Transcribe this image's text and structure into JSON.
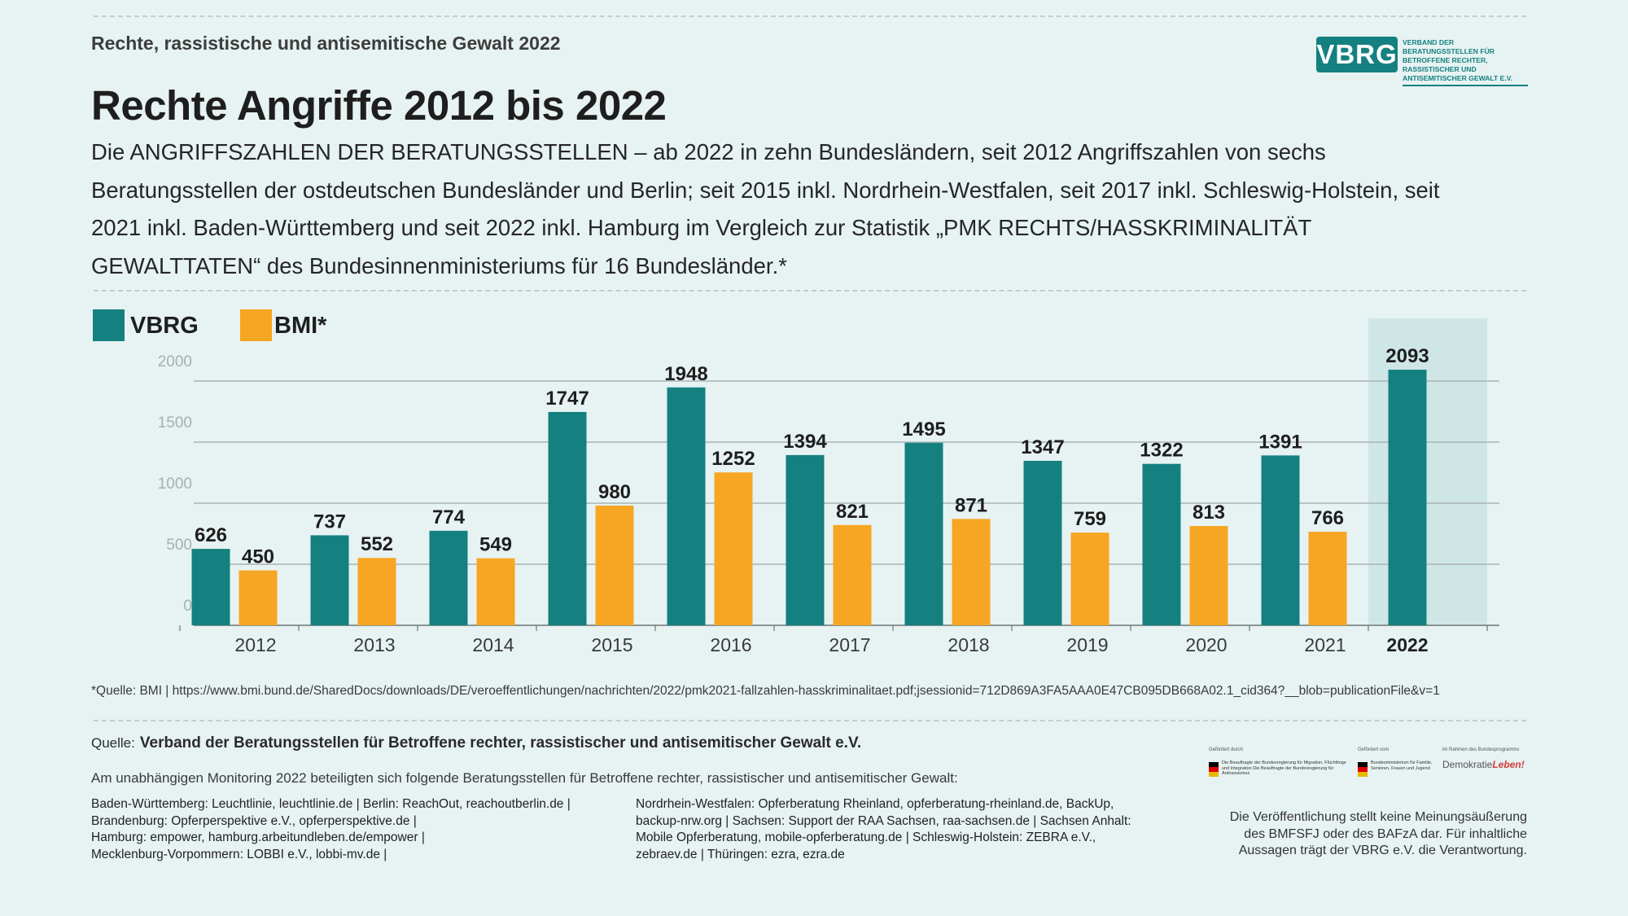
{
  "header": {
    "kicker": "Rechte, rassistische und antisemitische Gewalt 2022",
    "title": "Rechte Angriffe 2012 bis 2022",
    "subtitle": "Die ANGRIFFSZAHLEN DER BERATUNGSSTELLEN – ab 2022 in zehn Bundesländern, seit 2012 Angriffszahlen von sechs Beratungsstellen der ostdeutschen Bundesländer und Berlin; seit 2015 inkl. Nordrhein-Westfalen, seit 2017 inkl. Schleswig-Holstein, seit 2021 inkl. Baden-Württemberg und seit 2022 inkl. Hamburg im Vergleich zur Statistik „PMK RECHTS/HASSKRIMINALITÄT GEWALTTATEN“ des Bundesinnenministeriums für 16 Bundesländer.*"
  },
  "logo": {
    "mark": "VBRG",
    "text": "Verband der Beratungsstellen für Betroffene rechter, rassistischer und antisemitischer Gewalt e.V."
  },
  "colors": {
    "vbrg": "#148080",
    "bmi": "#f7a623",
    "highlight": "#cfe6e7",
    "grid": "#a9b4b4",
    "tick": "#b7bfbf"
  },
  "chart_data": {
    "type": "bar",
    "categories": [
      "2012",
      "2013",
      "2014",
      "2015",
      "2016",
      "2017",
      "2018",
      "2019",
      "2020",
      "2021",
      "2022"
    ],
    "series": [
      {
        "name": "VBRG",
        "values": [
          626,
          737,
          774,
          1747,
          1948,
          1394,
          1495,
          1347,
          1322,
          1391,
          2093
        ]
      },
      {
        "name": "BMI*",
        "values": [
          450,
          552,
          549,
          980,
          1252,
          821,
          871,
          759,
          813,
          766,
          null
        ]
      }
    ],
    "yticks": [
      "0",
      "500",
      "1000",
      "1500",
      "2000"
    ],
    "ylim": [
      0,
      2100
    ],
    "highlight_category": "2022",
    "grid": true,
    "legend": "top-left"
  },
  "footnote": "*Quelle: BMI | https://www.bmi.bund.de/SharedDocs/downloads/DE/veroeffentlichungen/nachrichten/2022/pmk2021-fallzahlen-hasskriminalitaet.pdf;jsessionid=712D869A3FA5AAA0E47CB095DB668A02.1_cid364?__blob=publicationFile&v=1",
  "source": {
    "label": "Quelle:",
    "text": "Verband der Beratungsstellen für Betroffene rechter, rassistischer und antisemitischer Gewalt e.V."
  },
  "monitoring": "Am unabhängigen Monitoring 2022 beteiligten sich folgende Beratungsstellen für Betroffene rechter, rassistischer und antisemitischer Gewalt:",
  "col_left": [
    "Baden-Württemberg: Leuchtlinie, leuchtlinie.de | Berlin: ReachOut, reachoutberlin.de |",
    "Brandenburg: Opferperspektive e.V., opferperspektive.de |",
    "Hamburg: empower, hamburg.arbeitundleben.de/empower |",
    "Mecklenburg-Vorpommern: LOBBI e.V., lobbi-mv.de  |"
  ],
  "col_right": [
    "Nordrhein-Westfalen: Opferberatung Rheinland, opferberatung-rheinland.de, BackUp,",
    "backup-nrw.org | Sachsen: Support der RAA Sachsen, raa-sachsen.de | Sachsen Anhalt:",
    "Mobile Opferberatung, mobile-opferberatung.de | Schleswig-Holstein: ZEBRA e.V.,",
    "zebraev.de | Thüringen: ezra, ezra.de"
  ],
  "funders": {
    "f1_caption": "Gefördert durch",
    "f1_text": "Die Beauftragte der Bundesregierung für Migration, Flüchtlinge und Integration Die Beauftragte der Bundesregierung für Antirassismus",
    "f2_caption": "Gefördert vom",
    "f2_text": "Bundesministerium für Familie, Senioren, Frauen und Jugend",
    "f3_caption": "im Rahmen des Bundesprogramms",
    "f3_main": "Demokratie",
    "f3_accent": "Leben!"
  },
  "disclaimer": [
    "Die Veröffentlichung stellt keine Meinungsäußerung",
    "des BMFSFJ oder des BAFzA dar. Für inhaltliche",
    "Aussagen trägt der VBRG e.V. die Verantwortung."
  ]
}
